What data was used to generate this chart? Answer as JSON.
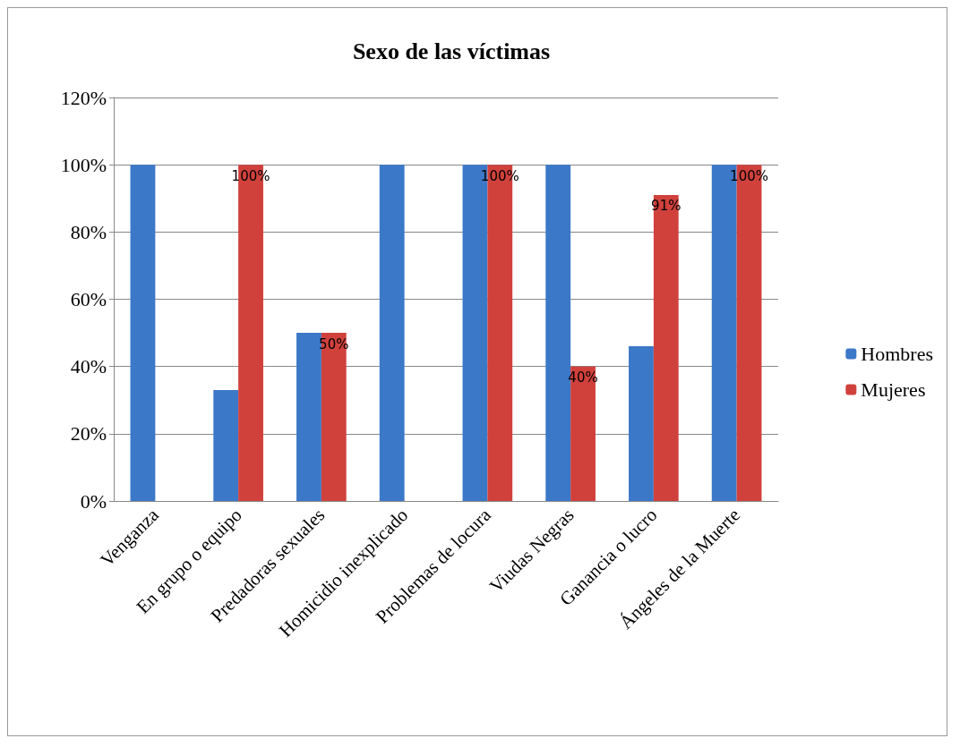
{
  "chart_data": {
    "type": "bar",
    "title": "Sexo de las víctimas",
    "categories": [
      "Venganza",
      "En grupo o equipo",
      "Predadoras sexuales",
      "Homicidio inexplicado",
      "Problemas de locura",
      "Viudas Negras",
      "Ganancia o lucro",
      "Ángeles de la Muerte"
    ],
    "series": [
      {
        "name": "Hombres",
        "color": "#3b78c8",
        "values": [
          100,
          33,
          50,
          100,
          100,
          100,
          46,
          100
        ]
      },
      {
        "name": "Mujeres",
        "color": "#d0413c",
        "values": [
          null,
          100,
          50,
          null,
          100,
          40,
          91,
          100
        ],
        "value_labels": [
          null,
          "100%",
          "50%",
          null,
          "100%",
          "40%",
          "91%",
          "100%"
        ]
      }
    ],
    "ylim": [
      0,
      120
    ],
    "yticks": [
      {
        "value": 0,
        "label": "0%"
      },
      {
        "value": 20,
        "label": "20%"
      },
      {
        "value": 40,
        "label": "40%"
      },
      {
        "value": 60,
        "label": "60%"
      },
      {
        "value": 80,
        "label": "80%"
      },
      {
        "value": 100,
        "label": "100%"
      },
      {
        "value": 120,
        "label": "120%"
      }
    ],
    "grid": "y",
    "legend": "right"
  }
}
